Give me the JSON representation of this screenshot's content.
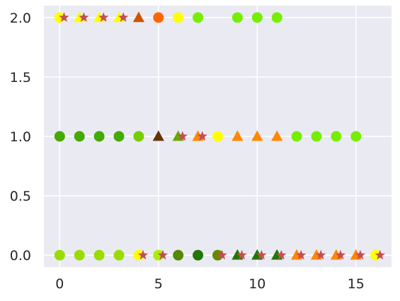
{
  "chart_data": {
    "type": "scatter",
    "title": "",
    "xlabel": "",
    "ylabel": "",
    "xlim": [
      -0.8,
      16.8
    ],
    "ylim": [
      -0.1,
      2.1
    ],
    "x_ticks": [
      0,
      5,
      10,
      15
    ],
    "x_tick_labels": [
      "0",
      "5",
      "10",
      "15"
    ],
    "y_ticks": [
      0.0,
      0.5,
      1.0,
      1.5,
      2.0
    ],
    "y_tick_labels": [
      "0.0",
      "0.5",
      "1.0",
      "1.5",
      "2.0"
    ],
    "grid": true,
    "background_color": "#eaeaf2",
    "grid_color": "#ffffff",
    "star_color": "#c44e52",
    "rows": [
      {
        "y": 2.0,
        "points": [
          {
            "x": 0,
            "marker": "circle",
            "color": "#ffff00"
          },
          {
            "x": 1,
            "marker": "triangle",
            "color": "#ffff00"
          },
          {
            "x": 2,
            "marker": "triangle",
            "color": "#ffff00"
          },
          {
            "x": 3,
            "marker": "triangle",
            "color": "#ffff00"
          },
          {
            "x": 4,
            "marker": "triangle",
            "color": "#cc5500"
          },
          {
            "x": 5,
            "marker": "circle",
            "color": "#ff6600"
          },
          {
            "x": 6,
            "marker": "circle",
            "color": "#ffff00"
          },
          {
            "x": 7,
            "marker": "circle",
            "color": "#77ee00"
          },
          {
            "x": 9,
            "marker": "circle",
            "color": "#77ee00"
          },
          {
            "x": 10,
            "marker": "circle",
            "color": "#77ee00"
          },
          {
            "x": 11,
            "marker": "circle",
            "color": "#77ee00"
          }
        ],
        "stars": [
          0,
          1,
          2,
          3
        ]
      },
      {
        "y": 1.0,
        "points": [
          {
            "x": 0,
            "marker": "circle",
            "color": "#44aa00"
          },
          {
            "x": 1,
            "marker": "circle",
            "color": "#44aa00"
          },
          {
            "x": 2,
            "marker": "circle",
            "color": "#44aa00"
          },
          {
            "x": 3,
            "marker": "circle",
            "color": "#44aa00"
          },
          {
            "x": 4,
            "marker": "circle",
            "color": "#77cc00"
          },
          {
            "x": 5,
            "marker": "triangle",
            "color": "#663300"
          },
          {
            "x": 6,
            "marker": "triangle",
            "color": "#66aa00"
          },
          {
            "x": 7,
            "marker": "triangle",
            "color": "#ff8800"
          },
          {
            "x": 8,
            "marker": "circle",
            "color": "#ffff00"
          },
          {
            "x": 9,
            "marker": "triangle",
            "color": "#ff8800"
          },
          {
            "x": 10,
            "marker": "triangle",
            "color": "#ff8800"
          },
          {
            "x": 11,
            "marker": "triangle",
            "color": "#ff8800"
          },
          {
            "x": 12,
            "marker": "circle",
            "color": "#77ee00"
          },
          {
            "x": 13,
            "marker": "circle",
            "color": "#77ee00"
          },
          {
            "x": 14,
            "marker": "circle",
            "color": "#77ee00"
          },
          {
            "x": 15,
            "marker": "circle",
            "color": "#77ee00"
          }
        ],
        "stars": [
          6,
          7
        ]
      },
      {
        "y": 0.0,
        "points": [
          {
            "x": 0,
            "marker": "circle",
            "color": "#99dd00"
          },
          {
            "x": 1,
            "marker": "circle",
            "color": "#99dd00"
          },
          {
            "x": 2,
            "marker": "circle",
            "color": "#99dd00"
          },
          {
            "x": 3,
            "marker": "circle",
            "color": "#99dd00"
          },
          {
            "x": 4,
            "marker": "circle",
            "color": "#ffff00"
          },
          {
            "x": 5,
            "marker": "circle",
            "color": "#aaee00"
          },
          {
            "x": 6,
            "marker": "circle",
            "color": "#558800"
          },
          {
            "x": 7,
            "marker": "circle",
            "color": "#227700"
          },
          {
            "x": 8,
            "marker": "circle",
            "color": "#668800"
          },
          {
            "x": 9,
            "marker": "triangle",
            "color": "#227700"
          },
          {
            "x": 10,
            "marker": "triangle",
            "color": "#227700"
          },
          {
            "x": 11,
            "marker": "triangle",
            "color": "#227700"
          },
          {
            "x": 12,
            "marker": "triangle",
            "color": "#ff8800"
          },
          {
            "x": 13,
            "marker": "triangle",
            "color": "#ff8800"
          },
          {
            "x": 14,
            "marker": "triangle",
            "color": "#ff8800"
          },
          {
            "x": 15,
            "marker": "triangle",
            "color": "#ff8800"
          },
          {
            "x": 16,
            "marker": "circle",
            "color": "#ffff00"
          }
        ],
        "stars": [
          4,
          5,
          8,
          9,
          10,
          11,
          12,
          13,
          14,
          15,
          16
        ]
      }
    ]
  }
}
